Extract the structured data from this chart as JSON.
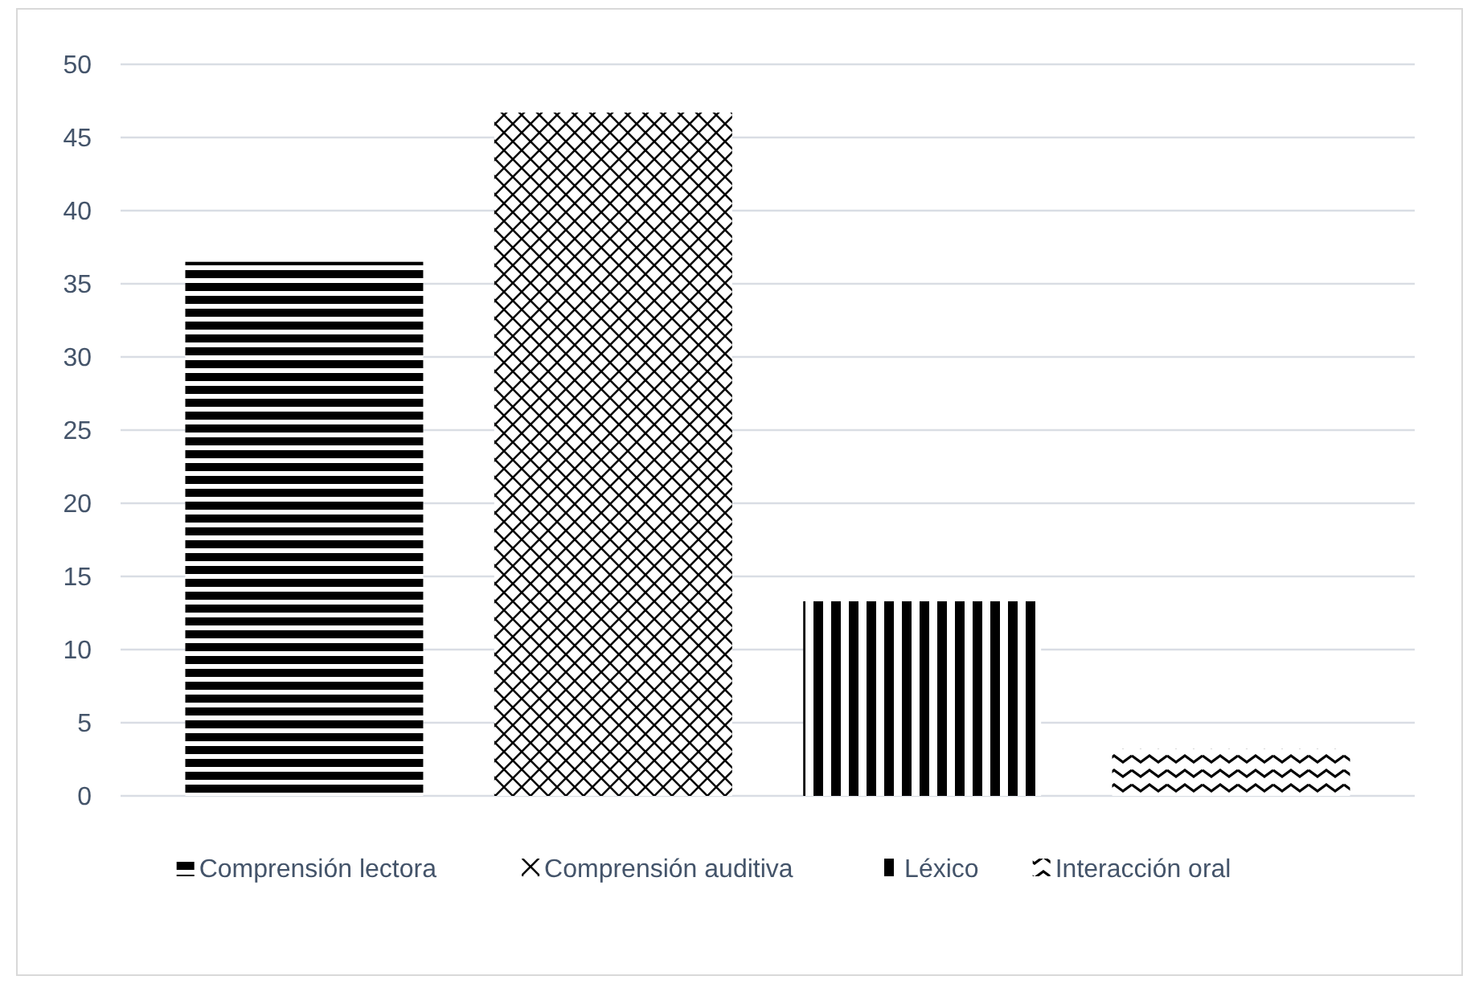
{
  "chart_data": {
    "type": "bar",
    "categories": [
      null
    ],
    "series": [
      {
        "name": "Comprensión lectora",
        "color": "#000000",
        "values": [
          36.5
        ]
      },
      {
        "name": "Comprensión auditiva",
        "color": "#000000",
        "values": [
          46.7
        ]
      },
      {
        "name": "Léxico",
        "color": "#000000",
        "values": [
          13.3
        ]
      },
      {
        "name": "Interacción oral",
        "color": "#000000",
        "values": [
          3.2
        ]
      }
    ],
    "ylim": [
      0,
      50
    ],
    "yticks": [
      0,
      5,
      10,
      15,
      20,
      25,
      30,
      35,
      40,
      45,
      50
    ],
    "grid": "y",
    "legend": "bottom"
  }
}
